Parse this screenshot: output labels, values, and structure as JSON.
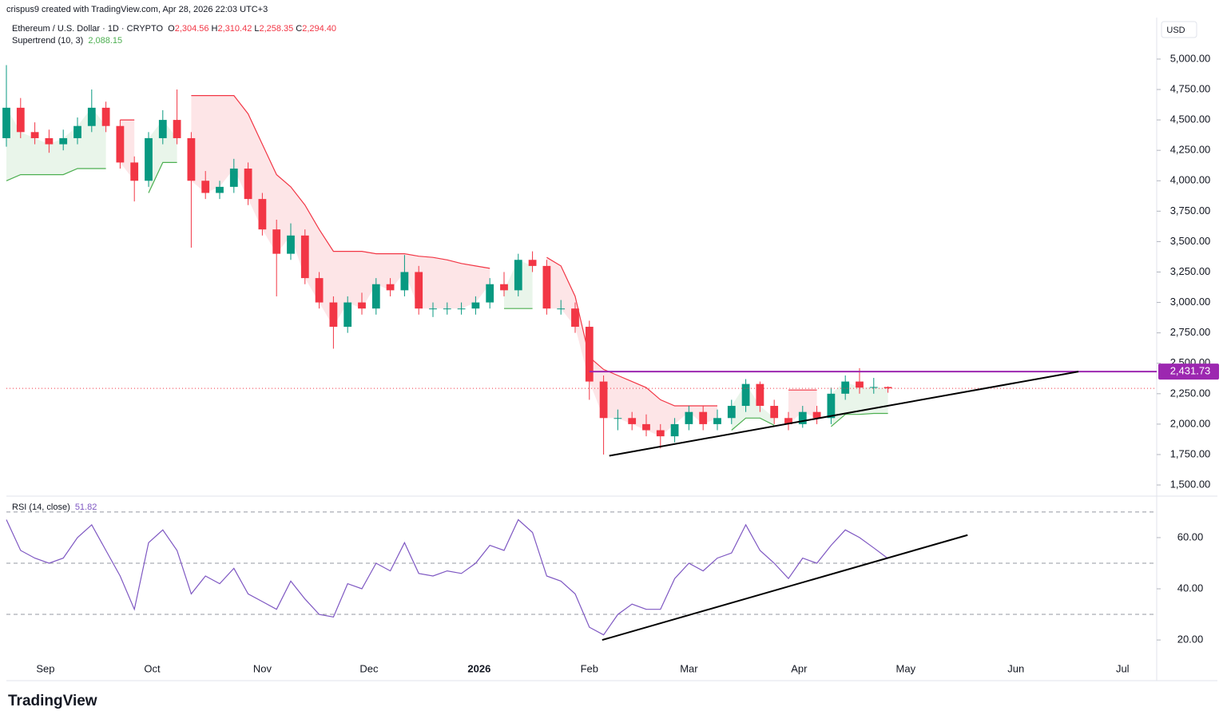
{
  "header": {
    "credit": "crispus9 created with TradingView.com, Apr 28, 2026 22:03 UTC+3",
    "symbol": "Ethereum / U.S. Dollar · 1D · CRYPTO",
    "ohlc": [
      {
        "key": "O",
        "value": "2,304.56"
      },
      {
        "key": "H",
        "value": "2,310.42"
      },
      {
        "key": "L",
        "value": "2,258.35"
      },
      {
        "key": "C",
        "value": "2,294.40"
      }
    ],
    "currency": "USD"
  },
  "footer": {
    "logo": "TradingView"
  },
  "chart_data": [
    {
      "type": "candlestick",
      "up_color": "#089981",
      "down_color": "#f23645",
      "open": [
        4350,
        4600,
        4400,
        4350,
        4300,
        4350,
        4450,
        4600,
        4450,
        4150,
        4000,
        4350,
        4500,
        4350,
        4000,
        3900,
        3950,
        4100,
        3850,
        3600,
        3400,
        3550,
        3200,
        3000,
        2800,
        3000,
        2950,
        3150,
        3100,
        3250,
        2950,
        2950,
        2950,
        2950,
        3000,
        3150,
        3100,
        3350,
        3300,
        2950,
        2950,
        2800,
        2350,
        2050,
        2050,
        2000,
        1950,
        1900,
        2000,
        2100,
        2000,
        2050,
        2150,
        2330,
        2150,
        2050,
        2000,
        2100,
        2050,
        2250,
        2350,
        2300,
        2305
      ],
      "high": [
        4950,
        4680,
        4480,
        4420,
        4420,
        4520,
        4750,
        4650,
        4500,
        4200,
        4400,
        4580,
        4750,
        4400,
        4080,
        4000,
        4180,
        4150,
        3900,
        3680,
        3650,
        3600,
        3250,
        3050,
        3050,
        3080,
        3200,
        3200,
        3390,
        3300,
        3000,
        3000,
        3000,
        3050,
        3200,
        3250,
        3400,
        3420,
        3350,
        3020,
        3000,
        2850,
        2400,
        2120,
        2100,
        2080,
        2000,
        2050,
        2150,
        2150,
        2120,
        2200,
        2370,
        2350,
        2200,
        2100,
        2150,
        2150,
        2300,
        2400,
        2460,
        2380,
        2310
      ],
      "low": [
        4280,
        4350,
        4300,
        4230,
        4250,
        4300,
        4400,
        4400,
        4100,
        3830,
        3950,
        4300,
        4300,
        3450,
        3850,
        3850,
        3900,
        3800,
        3550,
        3050,
        3350,
        3150,
        2950,
        2620,
        2750,
        2900,
        2900,
        3050,
        3050,
        2900,
        2880,
        2900,
        2900,
        2900,
        2950,
        3050,
        3050,
        3250,
        2900,
        2900,
        2750,
        2200,
        1750,
        1950,
        1950,
        1900,
        1800,
        1850,
        1950,
        1950,
        1950,
        2000,
        2100,
        2100,
        2000,
        1950,
        1970,
        2000,
        2000,
        2200,
        2250,
        2250,
        2258
      ],
      "close": [
        4600,
        4400,
        4350,
        4300,
        4350,
        4450,
        4600,
        4450,
        4150,
        4000,
        4350,
        4500,
        4350,
        4000,
        3900,
        3950,
        4100,
        3850,
        3600,
        3400,
        3550,
        3200,
        3000,
        2800,
        3000,
        2950,
        3150,
        3100,
        3250,
        2950,
        2950,
        2950,
        2950,
        3000,
        3150,
        3100,
        3350,
        3300,
        2950,
        2950,
        2800,
        2350,
        2050,
        2050,
        2000,
        1950,
        1900,
        2000,
        2100,
        2000,
        2050,
        2150,
        2330,
        2150,
        2050,
        2000,
        2100,
        2050,
        2250,
        2350,
        2300,
        2305,
        2294
      ],
      "supertrend": {
        "name": "Supertrend (10, 3)",
        "value_label": "2,088.15",
        "up_color": "#4caf50",
        "down_color": "#f23645",
        "up": [
          4000,
          4050,
          4050,
          4050,
          4050,
          4100,
          4100,
          4100,
          null,
          null,
          3900,
          4150,
          4150,
          null,
          null,
          null,
          null,
          null,
          null,
          null,
          null,
          null,
          null,
          null,
          null,
          null,
          null,
          null,
          null,
          null,
          null,
          null,
          null,
          null,
          null,
          2950,
          2950,
          2950,
          null,
          null,
          null,
          null,
          null,
          null,
          null,
          null,
          null,
          null,
          null,
          null,
          null,
          1950,
          2050,
          2050,
          1990,
          null,
          null,
          null,
          1980,
          2080,
          2080,
          2088,
          2088.15
        ],
        "down": [
          null,
          null,
          null,
          null,
          null,
          null,
          null,
          null,
          4500,
          4500,
          null,
          null,
          null,
          4700,
          4700,
          4700,
          4700,
          4550,
          4300,
          4050,
          3950,
          3800,
          3600,
          3420,
          3420,
          3420,
          3400,
          3400,
          3400,
          3380,
          3370,
          3350,
          3320,
          3300,
          3280,
          null,
          null,
          null,
          3370,
          3300,
          3050,
          2550,
          2450,
          2400,
          2350,
          2300,
          2200,
          2150,
          2150,
          2150,
          2150,
          null,
          null,
          null,
          null,
          2280,
          2280,
          2280,
          null,
          null,
          null,
          null,
          null
        ]
      },
      "ylim": [
        1415,
        5341
      ],
      "yticks": [
        {
          "value": 1500,
          "label": "1,500.00"
        },
        {
          "value": 1750,
          "label": "1,750.00"
        },
        {
          "value": 2000,
          "label": "2,000.00"
        },
        {
          "value": 2250,
          "label": "2,250.00"
        },
        {
          "value": 2500,
          "label": "2,500.00"
        },
        {
          "value": 2750,
          "label": "2,750.00"
        },
        {
          "value": 3000,
          "label": "3,000.00"
        },
        {
          "value": 3250,
          "label": "3,250.00"
        },
        {
          "value": 3500,
          "label": "3,500.00"
        },
        {
          "value": 3750,
          "label": "3,750.00"
        },
        {
          "value": 4000,
          "label": "4,000.00"
        },
        {
          "value": 4250,
          "label": "4,250.00"
        },
        {
          "value": 4500,
          "label": "4,500.00"
        },
        {
          "value": 4750,
          "label": "4,750.00"
        },
        {
          "value": 5000,
          "label": "5,000.00"
        }
      ],
      "drawings": [
        {
          "type": "hline",
          "x0": 41,
          "value": 2431.73,
          "label": "2,431.73",
          "color": "#9c27b0"
        },
        {
          "type": "trend",
          "x": [
            42.4,
            75.4
          ],
          "y": [
            1740,
            2431.73
          ],
          "color": "#000000"
        }
      ]
    },
    {
      "type": "line",
      "name": "RSI (14, close)",
      "value_label": "51.82",
      "color": "#7e57c2",
      "values": [
        67,
        55,
        52,
        50,
        52,
        60,
        65,
        55,
        45,
        32,
        58,
        63,
        55,
        38,
        45,
        42,
        48,
        38,
        35,
        32,
        43,
        36,
        30,
        29,
        42,
        40,
        50,
        47,
        58,
        46,
        45,
        47,
        46,
        50,
        57,
        55,
        67,
        62,
        45,
        43,
        38,
        25,
        22,
        30,
        34,
        32,
        32,
        44,
        50,
        47,
        52,
        54,
        65,
        55,
        50,
        44,
        52,
        50,
        57,
        63,
        60,
        56,
        51.82
      ],
      "levels": [
        70,
        50,
        30
      ],
      "ylim": [
        14.1,
        75.9
      ],
      "yticks": [
        {
          "value": 20,
          "label": "20.00"
        },
        {
          "value": 40,
          "label": "40.00"
        },
        {
          "value": 60,
          "label": "60.00"
        }
      ],
      "xlim": [
        0,
        80.9
      ],
      "xticks": [
        {
          "value": 2.75,
          "label": "Sep"
        },
        {
          "value": 10.25,
          "label": "Oct"
        },
        {
          "value": 18,
          "label": "Nov"
        },
        {
          "value": 25.5,
          "label": "Dec"
        },
        {
          "value": 33.25,
          "label": "2026"
        },
        {
          "value": 41,
          "label": "Feb"
        },
        {
          "value": 48,
          "label": "Mar"
        },
        {
          "value": 55.75,
          "label": "Apr"
        },
        {
          "value": 63.25,
          "label": "May"
        },
        {
          "value": 71,
          "label": "Jun"
        },
        {
          "value": 78.5,
          "label": "Jul"
        }
      ],
      "drawings": [
        {
          "type": "trend",
          "x": [
            41.9,
            67.6
          ],
          "y": [
            20,
            61
          ],
          "color": "#000000"
        }
      ]
    }
  ]
}
